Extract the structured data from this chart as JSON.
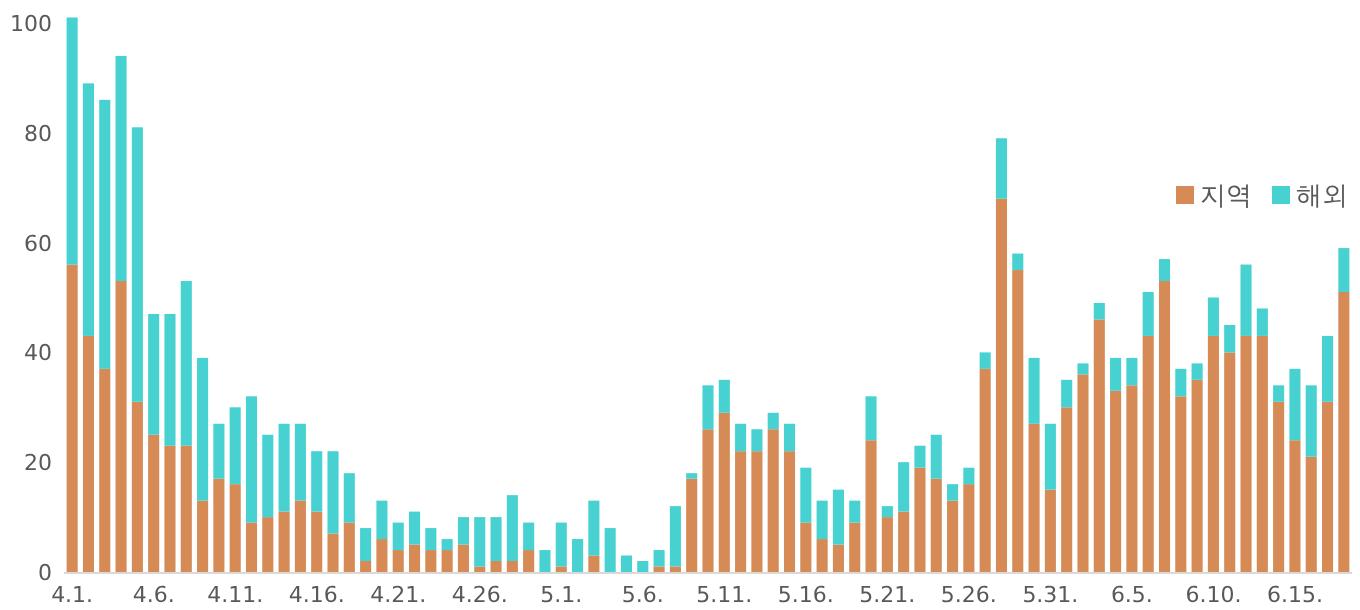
{
  "chart_data": {
    "type": "bar",
    "stacked": true,
    "categories": [
      "4.1.",
      null,
      null,
      null,
      null,
      "4.6.",
      null,
      null,
      null,
      null,
      "4.11.",
      null,
      null,
      null,
      null,
      "4.16.",
      null,
      null,
      null,
      null,
      "4.21.",
      null,
      null,
      null,
      null,
      "4.26.",
      null,
      null,
      null,
      null,
      "5.1.",
      null,
      null,
      null,
      null,
      "5.6.",
      null,
      null,
      null,
      null,
      "5.11.",
      null,
      null,
      null,
      null,
      "5.16.",
      null,
      null,
      null,
      null,
      "5.21.",
      null,
      null,
      null,
      null,
      "5.26.",
      null,
      null,
      null,
      null,
      "5.31.",
      null,
      null,
      null,
      null,
      "6.5.",
      null,
      null,
      null,
      null,
      "6.10.",
      null,
      null,
      null,
      null,
      "6.15.",
      null,
      null,
      null
    ],
    "series": [
      {
        "name": "지역",
        "color": "#d68a55",
        "values": [
          56,
          43,
          37,
          53,
          31,
          25,
          23,
          23,
          13,
          17,
          16,
          9,
          10,
          11,
          13,
          11,
          7,
          9,
          2,
          6,
          4,
          5,
          4,
          4,
          5,
          1,
          2,
          2,
          4,
          0,
          1,
          0,
          3,
          0,
          0,
          0,
          1,
          1,
          17,
          26,
          29,
          22,
          22,
          26,
          22,
          9,
          6,
          5,
          9,
          24,
          10,
          11,
          19,
          17,
          13,
          16,
          37,
          68,
          55,
          27,
          15,
          30,
          36,
          46,
          33,
          34,
          43,
          53,
          32,
          35,
          43,
          40,
          43,
          43,
          31,
          24,
          21,
          31,
          51
        ]
      },
      {
        "name": "해외",
        "color": "#48d1d1",
        "values": [
          45,
          46,
          49,
          41,
          50,
          22,
          24,
          30,
          26,
          10,
          14,
          23,
          15,
          16,
          14,
          11,
          15,
          9,
          6,
          7,
          5,
          6,
          4,
          2,
          5,
          9,
          8,
          12,
          5,
          4,
          8,
          6,
          10,
          8,
          3,
          2,
          3,
          11,
          1,
          8,
          6,
          5,
          4,
          3,
          5,
          10,
          7,
          10,
          4,
          8,
          2,
          9,
          4,
          8,
          3,
          3,
          3,
          11,
          3,
          12,
          12,
          5,
          2,
          3,
          6,
          5,
          8,
          4,
          5,
          3,
          7,
          5,
          13,
          5,
          3,
          13,
          13,
          12,
          8
        ]
      }
    ],
    "ylim": [
      0,
      102
    ],
    "yticks": [
      0,
      20,
      40,
      60,
      80,
      100
    ],
    "grid": false,
    "legend": "right"
  }
}
